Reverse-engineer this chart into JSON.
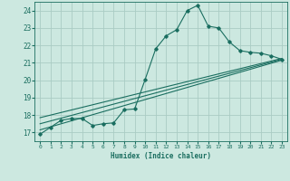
{
  "xlabel": "Humidex (Indice chaleur)",
  "background_color": "#cce8e0",
  "grid_color": "#aaccC4",
  "line_color": "#1a6e60",
  "xlim": [
    -0.5,
    23.5
  ],
  "ylim": [
    16.5,
    24.5
  ],
  "yticks": [
    17,
    18,
    19,
    20,
    21,
    22,
    23,
    24
  ],
  "xticks": [
    0,
    1,
    2,
    3,
    4,
    5,
    6,
    7,
    8,
    9,
    10,
    11,
    12,
    13,
    14,
    15,
    16,
    17,
    18,
    19,
    20,
    21,
    22,
    23
  ],
  "curve1_x": [
    0,
    1,
    2,
    3,
    4,
    5,
    6,
    7,
    8,
    9,
    10,
    11,
    12,
    13,
    14,
    15,
    16,
    17,
    18,
    19,
    20,
    21,
    22,
    23
  ],
  "curve1_y": [
    16.9,
    17.3,
    17.7,
    17.8,
    17.8,
    17.4,
    17.5,
    17.55,
    18.3,
    18.35,
    20.05,
    21.8,
    22.55,
    22.9,
    24.0,
    24.3,
    23.1,
    23.0,
    22.2,
    21.7,
    21.6,
    21.55,
    21.4,
    21.2
  ],
  "curve2_x": [
    0,
    23
  ],
  "curve2_y": [
    17.5,
    21.2
  ],
  "curve3_x": [
    0,
    23
  ],
  "curve3_y": [
    17.15,
    21.15
  ],
  "curve4_x": [
    0,
    23
  ],
  "curve4_y": [
    17.85,
    21.25
  ]
}
